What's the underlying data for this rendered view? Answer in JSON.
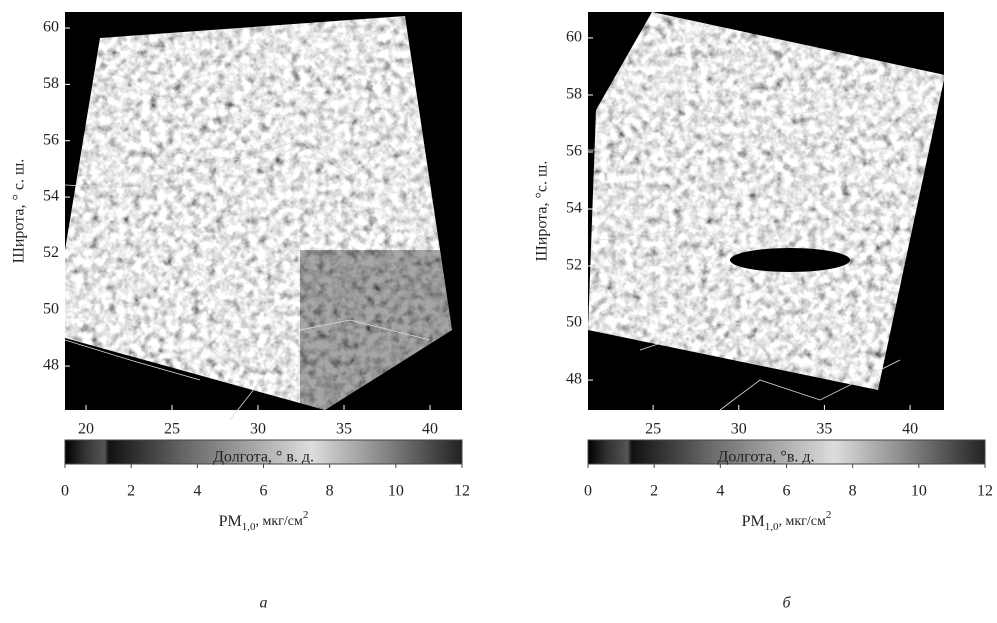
{
  "panels": [
    {
      "xlabel": "Долгота, ° в. д.",
      "ylabel": "Широта, ° с. ш.",
      "xlim": [
        18.78,
        41.86
      ],
      "xticks": [
        20,
        25,
        30,
        35,
        40
      ],
      "ylim": [
        46.44,
        60.57
      ],
      "yticks": [
        48,
        50,
        52,
        54,
        56,
        58,
        60
      ],
      "colorbar": {
        "lim": [
          0,
          12
        ],
        "ticks": [
          0,
          2,
          4,
          6,
          8,
          10,
          12
        ],
        "label": {
          "base": "PM",
          "sub": "1,0",
          "unit": ", мкг/см",
          "sup": "2"
        }
      },
      "caption": "а"
    },
    {
      "xlabel": "Долгота, °в. д.",
      "ylabel": "Широта, °с. ш.",
      "xlim": [
        21.2,
        41.98
      ],
      "xticks": [
        25,
        30,
        35,
        40
      ],
      "ylim": [
        46.95,
        60.91
      ],
      "yticks": [
        48,
        50,
        52,
        54,
        56,
        58,
        60
      ],
      "colorbar": {
        "lim": [
          0,
          12
        ],
        "ticks": [
          0,
          2,
          4,
          6,
          8,
          10,
          12
        ],
        "label": {
          "base": "PM",
          "sub": "1,0",
          "unit": ", мкг/см",
          "sup": "2"
        }
      },
      "caption": "б"
    }
  ]
}
